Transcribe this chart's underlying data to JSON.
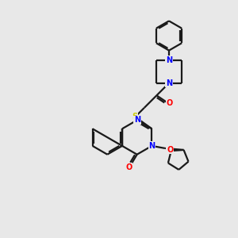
{
  "background_color": "#e8e8e8",
  "bond_color": "#1a1a1a",
  "nitrogen_color": "#0000ff",
  "oxygen_color": "#ff0000",
  "sulfur_color": "#cccc00",
  "line_width": 1.6,
  "figsize": [
    3.0,
    3.0
  ],
  "dpi": 100,
  "xlim": [
    0,
    10
  ],
  "ylim": [
    0,
    10
  ]
}
